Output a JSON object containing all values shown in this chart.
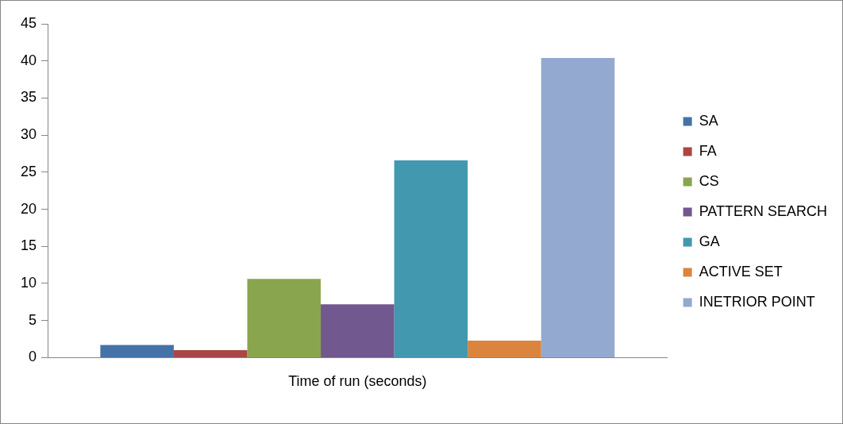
{
  "chart_data": {
    "type": "bar",
    "categories": [
      "Time of run (seconds)"
    ],
    "series": [
      {
        "name": "SA",
        "color": "#4572a7",
        "values": [
          1.7
        ]
      },
      {
        "name": "FA",
        "color": "#aa4643",
        "values": [
          1.0
        ]
      },
      {
        "name": "CS",
        "color": "#89a54e",
        "values": [
          10.6
        ]
      },
      {
        "name": "PATTERN SEARCH",
        "color": "#71588f",
        "values": [
          7.2
        ]
      },
      {
        "name": "GA",
        "color": "#4198af",
        "values": [
          26.6
        ]
      },
      {
        "name": "ACTIVE SET",
        "color": "#db843d",
        "values": [
          2.3
        ]
      },
      {
        "name": "INETRIOR POINT",
        "color": "#93a9cf",
        "values": [
          40.4
        ]
      }
    ],
    "ylim": [
      0,
      45
    ],
    "yticks": [
      0,
      5,
      10,
      15,
      20,
      25,
      30,
      35,
      40,
      45
    ],
    "grid": false,
    "legend": "right"
  }
}
